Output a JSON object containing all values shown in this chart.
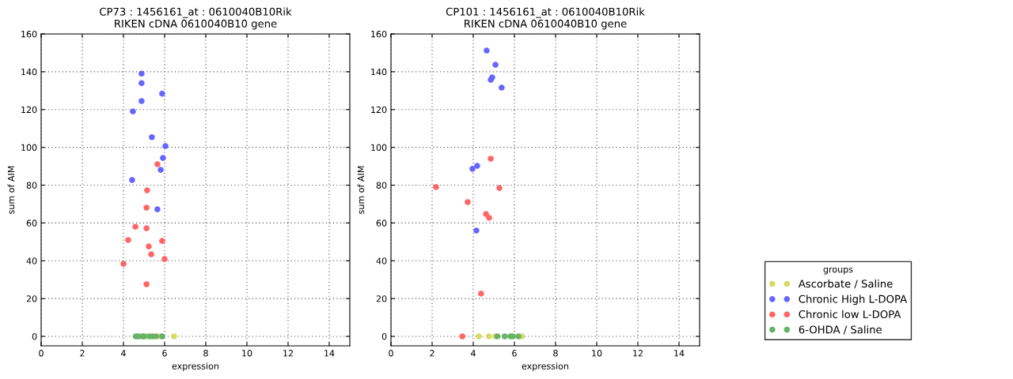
{
  "chart_data": [
    {
      "type": "scatter",
      "title": "CP73 : 1456161_at : 0610040B10Rik\nRIKEN cDNA 0610040B10 gene",
      "xlabel": "expression",
      "ylabel": "sum of AIM",
      "xlim": [
        0,
        15
      ],
      "ylim": [
        -5,
        160
      ],
      "xticks": [
        0,
        2,
        4,
        6,
        8,
        10,
        12,
        14
      ],
      "yticks": [
        0,
        20,
        40,
        60,
        80,
        100,
        120,
        140,
        160
      ],
      "grid": true,
      "marker": "circle",
      "series": [
        {
          "color": "#d9d966",
          "x": [
            5.12,
            5.77,
            6.46
          ],
          "values": [
            0,
            0,
            0
          ]
        },
        {
          "color": "#6666ff",
          "x": [
            4.88,
            4.88,
            5.88,
            4.88,
            4.46,
            5.38,
            6.04,
            5.92,
            5.81,
            4.42,
            5.65
          ],
          "values": [
            139,
            134,
            128.4,
            124.5,
            119,
            105.4,
            100.7,
            94.4,
            88.1,
            82.7,
            67.2
          ]
        },
        {
          "color": "#ff6666",
          "x": [
            5.65,
            5.15,
            5.12,
            5.12,
            4.58,
            4.23,
            5.88,
            5.23,
            5.35,
            6.0,
            4.0,
            5.12
          ],
          "values": [
            91.1,
            77.3,
            68.1,
            57.2,
            58,
            51,
            50.5,
            47.6,
            43.4,
            40.9,
            38.4,
            27.6
          ]
        },
        {
          "color": "#66b366",
          "x": [
            4.6,
            4.73,
            4.92,
            5.0,
            5.27,
            5.42,
            5.58,
            5.88
          ],
          "values": [
            0,
            0,
            0,
            0,
            0,
            0,
            0,
            0
          ]
        }
      ]
    },
    {
      "type": "scatter",
      "title": "CP101 : 1456161_at : 0610040B10Rik\nRIKEN cDNA 0610040B10 gene",
      "xlabel": "expression",
      "ylabel": "sum of AIM",
      "xlim": [
        0,
        15
      ],
      "ylim": [
        -5,
        160
      ],
      "xticks": [
        0,
        2,
        4,
        6,
        8,
        10,
        12,
        14
      ],
      "yticks": [
        0,
        20,
        40,
        60,
        80,
        100,
        120,
        140,
        160
      ],
      "grid": true,
      "marker": "circle",
      "legend": "right",
      "legend_title": "groups",
      "series": [
        {
          "name": "Ascorbate / Saline",
          "color": "#d9d966",
          "x": [
            4.27,
            4.76,
            5.07,
            6.36
          ],
          "values": [
            0,
            0,
            0,
            0
          ]
        },
        {
          "name": "Chronic High L-DOPA",
          "color": "#6666ff",
          "x": [
            4.65,
            5.08,
            4.92,
            4.85,
            5.38,
            3.96,
            4.19,
            4.15
          ],
          "values": [
            151.2,
            143.7,
            137,
            135.7,
            131.6,
            88.6,
            90.2,
            56
          ]
        },
        {
          "name": "Chronic low L-DOPA",
          "color": "#ff6666",
          "x": [
            4.85,
            2.19,
            5.27,
            3.73,
            4.62,
            4.77,
            4.38,
            3.47
          ],
          "values": [
            94,
            79,
            78.5,
            71,
            64.7,
            62.7,
            22.6,
            0
          ]
        },
        {
          "name": "6-OHDA / Saline",
          "color": "#66b366",
          "x": [
            5.17,
            5.53,
            5.81,
            5.92,
            6.19
          ],
          "values": [
            0,
            0,
            0,
            0,
            0
          ]
        }
      ]
    }
  ]
}
